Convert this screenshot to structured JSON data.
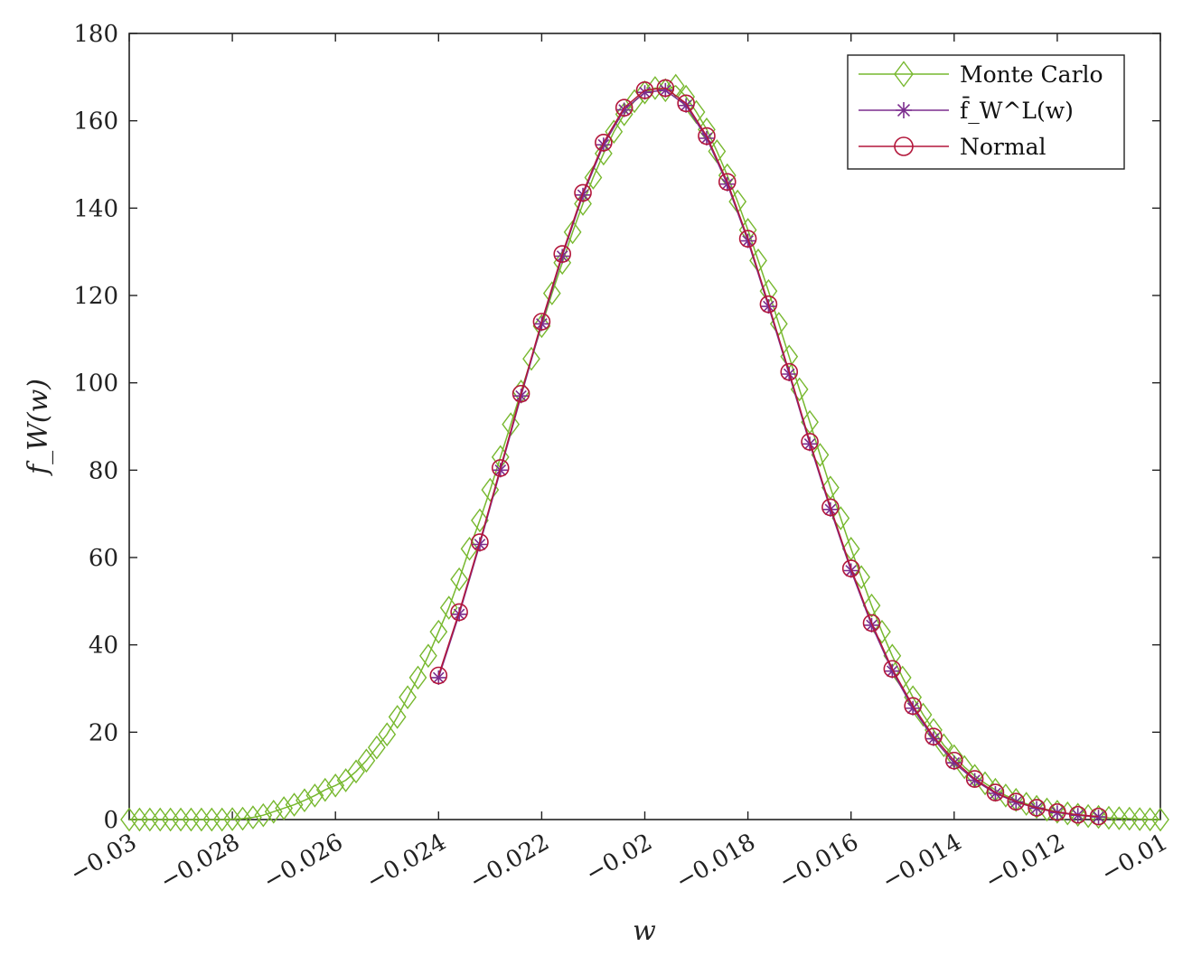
{
  "chart_data": {
    "type": "line",
    "title": "",
    "xlabel": "w",
    "ylabel": "f_W(w)",
    "xlim": [
      -0.03,
      -0.01
    ],
    "ylim": [
      0,
      180
    ],
    "xticks": [
      -0.03,
      -0.028,
      -0.026,
      -0.024,
      -0.022,
      -0.02,
      -0.018,
      -0.016,
      -0.014,
      -0.012,
      -0.01
    ],
    "xtick_labels": [
      "−0.03",
      "−0.028",
      "−0.026",
      "−0.024",
      "−0.022",
      "−0.02",
      "−0.018",
      "−0.016",
      "−0.014",
      "−0.012",
      "−0.01"
    ],
    "yticks": [
      0,
      20,
      40,
      60,
      80,
      100,
      120,
      140,
      160,
      180
    ],
    "ytick_labels": [
      "0",
      "20",
      "40",
      "60",
      "80",
      "100",
      "120",
      "140",
      "160",
      "180"
    ],
    "grid": false,
    "legend_position": "top-right",
    "series": [
      {
        "name": "Monte Carlo",
        "color": "#77b82e",
        "marker": "diamond",
        "x": [
          -0.03,
          -0.0298,
          -0.0296,
          -0.0294,
          -0.0292,
          -0.029,
          -0.0288,
          -0.0286,
          -0.0284,
          -0.0282,
          -0.028,
          -0.0278,
          -0.0276,
          -0.0274,
          -0.0272,
          -0.027,
          -0.0268,
          -0.0266,
          -0.0264,
          -0.0262,
          -0.026,
          -0.0258,
          -0.0256,
          -0.0254,
          -0.0252,
          -0.025,
          -0.0248,
          -0.0246,
          -0.0244,
          -0.0242,
          -0.024,
          -0.0238,
          -0.0236,
          -0.0234,
          -0.0232,
          -0.023,
          -0.0228,
          -0.0226,
          -0.0224,
          -0.0222,
          -0.022,
          -0.0218,
          -0.0216,
          -0.0214,
          -0.0212,
          -0.021,
          -0.0208,
          -0.0206,
          -0.0204,
          -0.0202,
          -0.02,
          -0.0198,
          -0.0196,
          -0.0194,
          -0.0192,
          -0.019,
          -0.0188,
          -0.0186,
          -0.0184,
          -0.0182,
          -0.018,
          -0.0178,
          -0.0176,
          -0.0174,
          -0.0172,
          -0.017,
          -0.0168,
          -0.0166,
          -0.0164,
          -0.0162,
          -0.016,
          -0.0158,
          -0.0156,
          -0.0154,
          -0.0152,
          -0.015,
          -0.0148,
          -0.0146,
          -0.0144,
          -0.0142,
          -0.014,
          -0.0138,
          -0.0136,
          -0.0134,
          -0.0132,
          -0.013,
          -0.0128,
          -0.0126,
          -0.0124,
          -0.0122,
          -0.012,
          -0.0118,
          -0.0116,
          -0.0114,
          -0.0112,
          -0.011,
          -0.0108,
          -0.0106,
          -0.0104,
          -0.0102,
          -0.01
        ],
        "y": [
          0,
          0,
          0,
          0,
          0,
          0,
          0,
          0,
          0,
          0,
          0.1,
          0.2,
          0.5,
          1,
          1.8,
          2.6,
          3.4,
          4.4,
          5.5,
          6.8,
          7.8,
          9,
          11,
          13.5,
          16.5,
          19.5,
          23.5,
          28,
          32.5,
          37.5,
          43,
          48.5,
          55,
          62,
          68.5,
          75.5,
          83,
          90.5,
          98,
          105.5,
          113,
          120.5,
          127.5,
          134.5,
          141,
          147,
          152.5,
          157.5,
          161.5,
          164.5,
          166.5,
          167.5,
          167,
          168,
          165.5,
          162,
          158,
          153,
          147.5,
          141.5,
          135,
          128,
          121,
          113.5,
          106,
          98.5,
          91,
          83.5,
          76,
          69,
          62,
          55.5,
          49,
          43,
          37.5,
          32.5,
          28,
          24,
          20.5,
          17,
          14.5,
          12,
          10,
          8.3,
          6.8,
          5.5,
          4.5,
          3.6,
          2.9,
          2.3,
          1.8,
          1.4,
          1.1,
          0.8,
          0.6,
          0.4,
          0.3,
          0.2,
          0.1,
          0.05,
          0
        ]
      },
      {
        "name": "f̄_W^L(w)",
        "color": "#7b2d8e",
        "marker": "asterisk",
        "x": [
          -0.024,
          -0.0236,
          -0.0232,
          -0.0228,
          -0.0224,
          -0.022,
          -0.0216,
          -0.0212,
          -0.0208,
          -0.0204,
          -0.02,
          -0.0196,
          -0.0192,
          -0.0188,
          -0.0184,
          -0.018,
          -0.0176,
          -0.0172,
          -0.0168,
          -0.0164,
          -0.016,
          -0.0156,
          -0.0152,
          -0.0148,
          -0.0144,
          -0.014,
          -0.0136,
          -0.0132,
          -0.0128,
          -0.0124,
          -0.012,
          -0.0116,
          -0.0112
        ],
        "y": [
          32.5,
          47,
          63,
          80,
          97,
          113.5,
          129,
          143,
          154.5,
          162.5,
          166.5,
          167,
          163.5,
          156,
          145.5,
          132.5,
          117.5,
          102,
          86,
          71,
          57,
          44.5,
          34,
          25.5,
          18.5,
          13,
          9,
          6,
          4,
          2.6,
          1.6,
          1,
          0.6
        ]
      },
      {
        "name": "Normal",
        "color": "#b3173b",
        "marker": "circle",
        "x": [
          -0.024,
          -0.0236,
          -0.0232,
          -0.0228,
          -0.0224,
          -0.022,
          -0.0216,
          -0.0212,
          -0.0208,
          -0.0204,
          -0.02,
          -0.0196,
          -0.0192,
          -0.0188,
          -0.0184,
          -0.018,
          -0.0176,
          -0.0172,
          -0.0168,
          -0.0164,
          -0.016,
          -0.0156,
          -0.0152,
          -0.0148,
          -0.0144,
          -0.014,
          -0.0136,
          -0.0132,
          -0.0128,
          -0.0124,
          -0.012,
          -0.0116,
          -0.0112
        ],
        "y": [
          33,
          47.5,
          63.5,
          80.5,
          97.5,
          114,
          129.5,
          143.5,
          155,
          163,
          167,
          167.5,
          164,
          156.5,
          146,
          133,
          118,
          102.5,
          86.5,
          71.5,
          57.5,
          45,
          34.5,
          26,
          19,
          13.5,
          9.3,
          6.2,
          4.1,
          2.7,
          1.7,
          1.1,
          0.7
        ]
      }
    ]
  }
}
